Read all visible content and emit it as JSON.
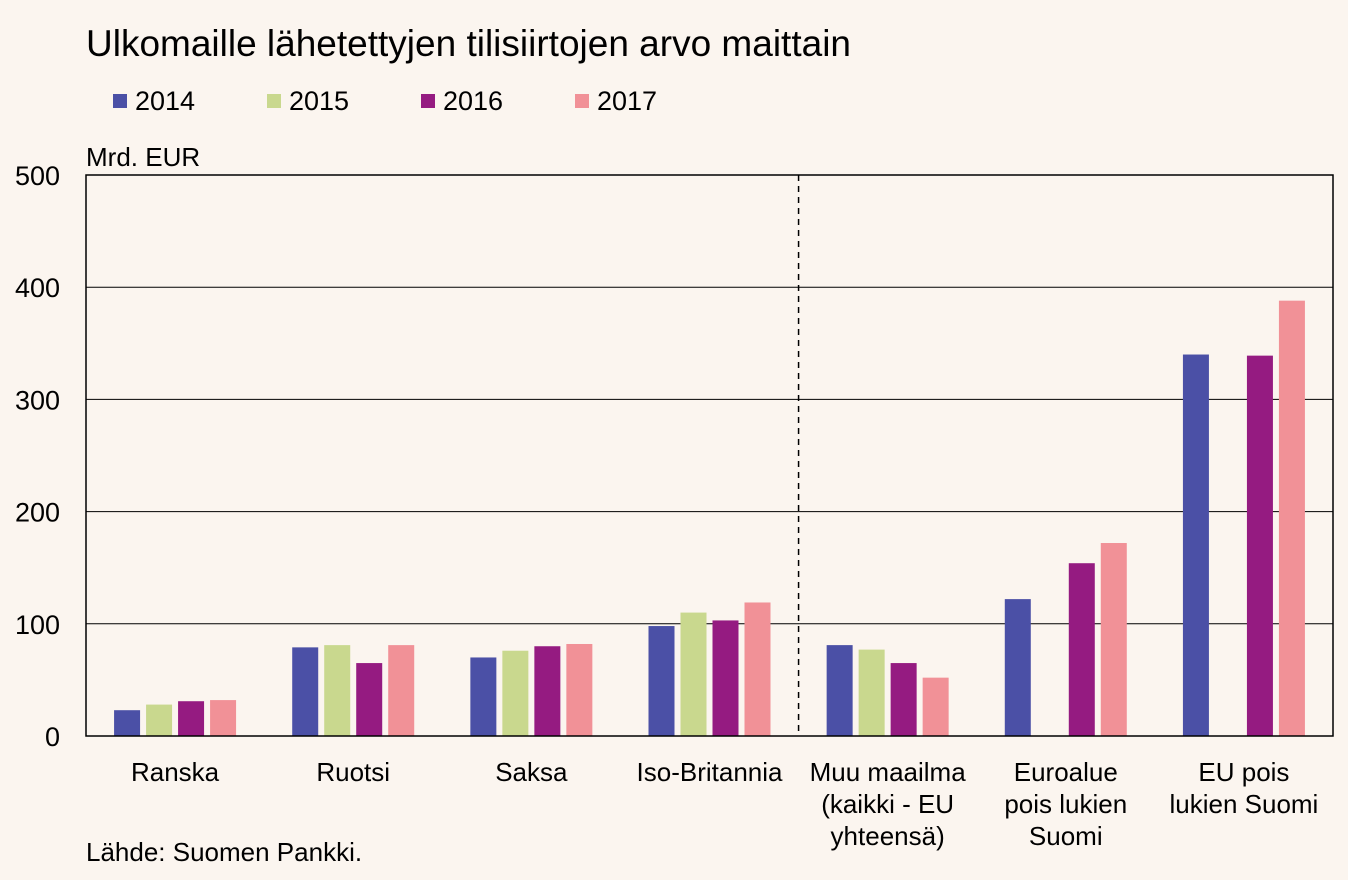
{
  "chart_data": {
    "type": "bar",
    "title": "Ulkomaille lähetettyjen tilisiirtojen arvo maittain",
    "ylabel": "Mrd. EUR",
    "ylim": [
      0,
      500
    ],
    "yticks": [
      0,
      100,
      200,
      300,
      400,
      500
    ],
    "grid": true,
    "legend_position": "top-left",
    "categories": [
      [
        "Ranska"
      ],
      [
        "Ruotsi"
      ],
      [
        "Saksa"
      ],
      [
        "Iso-Britannia"
      ],
      [
        "Muu maailma",
        "(kaikki - EU",
        "yhteensä)"
      ],
      [
        "Euroalue",
        "pois lukien",
        "Suomi"
      ],
      [
        "EU pois",
        "lukien Suomi"
      ]
    ],
    "series": [
      {
        "name": "2014",
        "color": "#4B50A6",
        "values": [
          23,
          79,
          70,
          98,
          81,
          122,
          340
        ]
      },
      {
        "name": "2015",
        "color": "#C9D88E",
        "values": [
          28,
          81,
          76,
          110,
          77,
          null,
          null
        ]
      },
      {
        "name": "2016",
        "color": "#951B81",
        "values": [
          31,
          65,
          80,
          103,
          65,
          154,
          339
        ]
      },
      {
        "name": "2017",
        "color": "#F19197",
        "values": [
          32,
          81,
          82,
          119,
          52,
          172,
          388
        ]
      }
    ]
  },
  "source": "Lähde: Suomen Pankki."
}
